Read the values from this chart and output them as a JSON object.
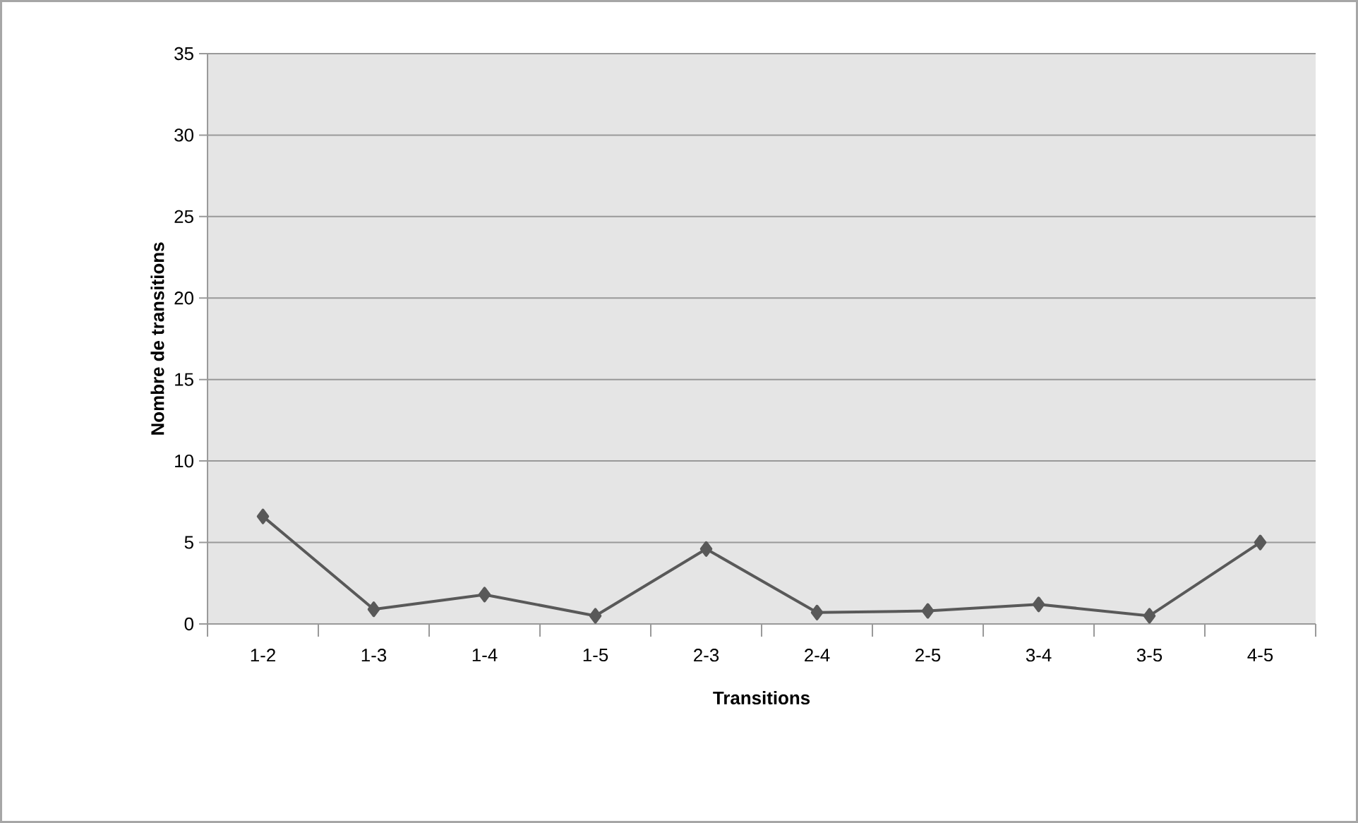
{
  "chart_data": {
    "type": "line",
    "xlabel": "Transitions",
    "ylabel": "Nombre de transitions",
    "categories": [
      "1-2",
      "1-3",
      "1-4",
      "1-5",
      "2-3",
      "2-4",
      "2-5",
      "3-4",
      "3-5",
      "4-5"
    ],
    "series": [
      {
        "color": "#595959",
        "values": [
          6.6,
          0.9,
          1.8,
          0.5,
          4.6,
          0.7,
          0.8,
          1.2,
          0.5,
          5.0
        ]
      }
    ],
    "ylim": [
      0,
      35
    ],
    "yticks": [
      0,
      5,
      10,
      15,
      20,
      25,
      30,
      35
    ],
    "grid": "y",
    "marker": "diamond",
    "line_style": "solid"
  }
}
